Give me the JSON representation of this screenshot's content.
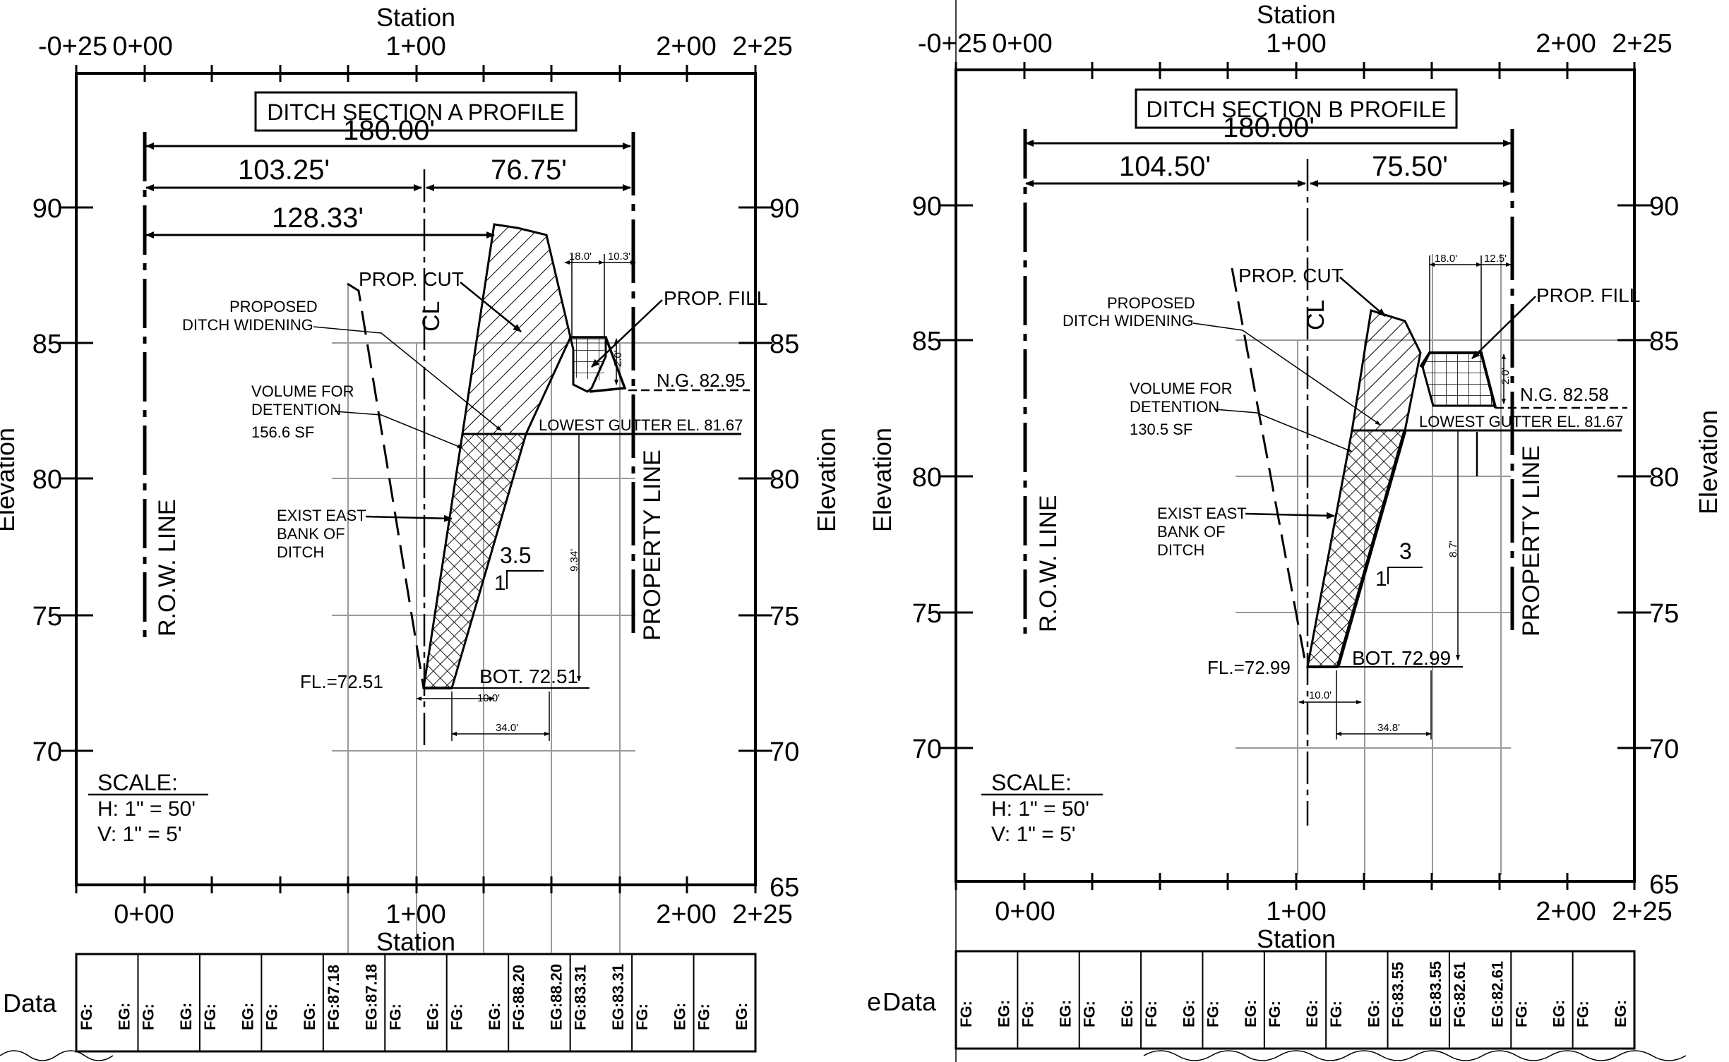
{
  "panels": [
    {
      "id": "a",
      "title": "DITCH SECTION A PROFILE",
      "station_label": "Station",
      "elevation_label": "Elevation",
      "left_elevation_label": "Elevation",
      "top_ticks": [
        "-0+25",
        "0+00",
        "1+00",
        "2+00",
        "2+25"
      ],
      "bottom_ticks": [
        "0+00",
        "1+00",
        "2+00",
        "2+25"
      ],
      "left_elev_ticks": [
        "90",
        "85",
        "80",
        "75",
        "70"
      ],
      "right_elev_ticks": [
        "90",
        "85",
        "80",
        "75",
        "70",
        "65"
      ],
      "dims": {
        "total": "180.00'",
        "left": "103.25'",
        "right": "76.75'",
        "row_dist": "128.33'"
      },
      "small_dims": {
        "top_a": "18.0'",
        "top_b": "10.3'",
        "depth": "2.0'",
        "bottom_w": "10.0'",
        "bottom_span": "34.0'",
        "height": "9.34'"
      },
      "labels": {
        "prop_cut": "PROP. CUT",
        "prop_fill": "PROP. FILL",
        "proposed": "PROPOSED",
        "ditch_widening": "DITCH  WIDENING",
        "volume_for": "VOLUME  FOR",
        "detention": "DETENTION",
        "volume_value": "156.6  SF",
        "exist_east": "EXIST EAST",
        "bank_of": "BANK OF",
        "ditch": "DITCH",
        "centerline": "CL",
        "ng": "N.G. 82.95",
        "gutter": "LOWEST GUTTER EL. 81.67",
        "fl": "FL.=72.51",
        "bot": "BOT. 72.51",
        "slope_rise": "3.5",
        "slope_run": "1",
        "row_line": "R.O.W. LINE",
        "property_line": "PROPERTY LINE"
      },
      "scale": {
        "title": "SCALE:",
        "h": "H: 1\" = 50'",
        "v": "V: 1\" = 5'"
      },
      "data_label": "Data",
      "band": [
        "EG:",
        "FG:",
        "EG:",
        "FG:",
        "EG:",
        "FG:",
        "EG:",
        "FG:",
        "EG:87.18",
        "FG:87.18",
        "EG:",
        "FG:",
        "EG:",
        "FG:",
        "EG:88.20",
        "FG:88.20",
        "EG:83.31",
        "FG:83.31",
        "EG:",
        "FG:",
        "EG:",
        "FG:"
      ]
    },
    {
      "id": "b",
      "title": "DITCH SECTION B PROFILE",
      "station_label": "Station",
      "elevation_label": "Elevation",
      "left_elevation_label": "Elevation",
      "top_ticks": [
        "-0+25",
        "0+00",
        "1+00",
        "2+00",
        "2+25"
      ],
      "bottom_ticks": [
        "0+00",
        "1+00",
        "2+00",
        "2+25"
      ],
      "left_elev_ticks": [
        "90",
        "85",
        "80",
        "75",
        "70"
      ],
      "right_elev_ticks": [
        "90",
        "85",
        "80",
        "75",
        "70",
        "65"
      ],
      "dims": {
        "total": "180.00'",
        "left": "104.50'",
        "right": "75.50'",
        "row_dist": ""
      },
      "small_dims": {
        "top_a": "18.0'",
        "top_b": "12.5'",
        "depth": "2.0'",
        "bottom_w": "10.0'",
        "bottom_span": "34.8'",
        "height": "8.7'"
      },
      "labels": {
        "prop_cut": "PROP. CUT",
        "prop_fill": "PROP. FILL",
        "proposed": "PROPOSED",
        "ditch_widening": "DITCH  WIDENING",
        "volume_for": "VOLUME  FOR",
        "detention": "DETENTION",
        "volume_value": "130.5  SF",
        "exist_east": "EXIST EAST",
        "bank_of": "BANK OF",
        "ditch": "DITCH",
        "centerline": "CL",
        "ng": "N.G. 82.58",
        "gutter": "LOWEST GUTTER EL. 81.67",
        "fl": "FL.=72.99",
        "bot": "BOT. 72.99",
        "slope_rise": "3",
        "slope_run": "1",
        "row_line": "R.O.W. LINE",
        "property_line": "PROPERTY LINE"
      },
      "scale": {
        "title": "SCALE:",
        "h": "H: 1\" = 50'",
        "v": "V: 1\" = 5'"
      },
      "data_label": "Data",
      "band": [
        "EG:",
        "FG:",
        "EG:",
        "FG:",
        "EG:",
        "FG:",
        "EG:",
        "FG:",
        "EG:",
        "FG:",
        "EG:",
        "FG:",
        "EG:",
        "FG:",
        "EG:83.55",
        "FG:83.55",
        "EG:82.61",
        "FG:82.61",
        "EG:",
        "FG:",
        "EG:",
        "FG:"
      ]
    }
  ]
}
